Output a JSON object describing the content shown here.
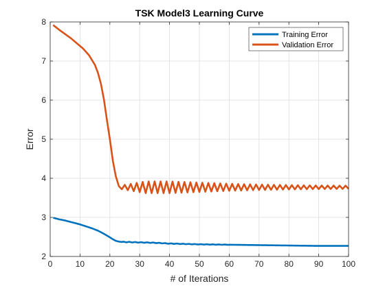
{
  "chart_data": {
    "type": "line",
    "title": "TSK Model3 Learning Curve",
    "xlabel": "# of Iterations",
    "ylabel": "Error",
    "xlim": [
      0,
      100
    ],
    "ylim": [
      2,
      8
    ],
    "xticks": [
      0,
      10,
      20,
      30,
      40,
      50,
      60,
      70,
      80,
      90,
      100
    ],
    "yticks": [
      2,
      3,
      4,
      5,
      6,
      7,
      8
    ],
    "grid": true,
    "legend_position": "top-right",
    "series": [
      {
        "name": "Training Error",
        "color": "#0072BD",
        "x": [
          1,
          3,
          5,
          8,
          10,
          12,
          14,
          16,
          18,
          20,
          21,
          22,
          23,
          24,
          25,
          30,
          35,
          40,
          50,
          60,
          70,
          80,
          90,
          100
        ],
        "y": [
          2.99,
          2.95,
          2.92,
          2.86,
          2.82,
          2.77,
          2.72,
          2.66,
          2.58,
          2.49,
          2.44,
          2.4,
          2.38,
          2.37,
          2.37,
          2.36,
          2.35,
          2.33,
          2.31,
          2.3,
          2.29,
          2.28,
          2.27,
          2.27
        ],
        "oscillation": {
          "start_x": 24,
          "end_x": 60,
          "amplitude": [
            0.008,
            0.004
          ],
          "period": 2
        }
      },
      {
        "name": "Validation Error",
        "color": "#D95319",
        "x": [
          1,
          3,
          5,
          7,
          9,
          11,
          13,
          15,
          16,
          17,
          18,
          19,
          20,
          21,
          22,
          23
        ],
        "y": [
          7.92,
          7.8,
          7.69,
          7.58,
          7.45,
          7.32,
          7.15,
          6.9,
          6.7,
          6.42,
          6.02,
          5.5,
          5.0,
          4.45,
          4.05,
          3.8
        ],
        "oscillation": {
          "start_x": 24,
          "end_x": 100,
          "baseline": 3.77,
          "period": 2,
          "amplitude_at": [
            [
              24,
              0.05
            ],
            [
              32,
              0.15
            ],
            [
              40,
              0.15
            ],
            [
              50,
              0.12
            ],
            [
              60,
              0.09
            ],
            [
              70,
              0.07
            ],
            [
              85,
              0.05
            ],
            [
              100,
              0.04
            ]
          ]
        }
      }
    ]
  }
}
